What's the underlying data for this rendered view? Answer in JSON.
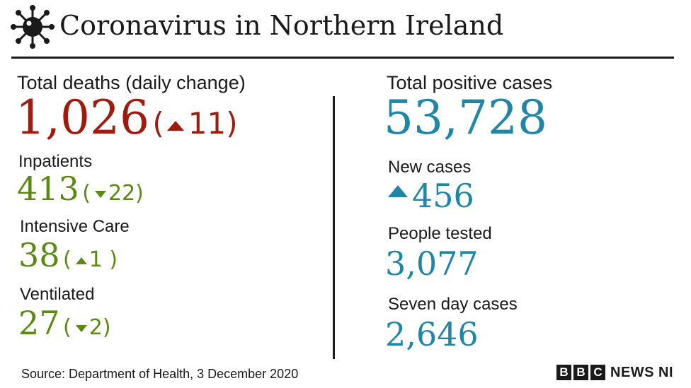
{
  "header": {
    "title": "Coronavirus in Northern Ireland",
    "icon": "virus-icon"
  },
  "left": {
    "deaths": {
      "label": "Total deaths (daily change)",
      "value": "1,026",
      "change": "11",
      "direction": "up"
    },
    "inpatients": {
      "label": "Inpatients",
      "value": "413",
      "change": "22",
      "direction": "down"
    },
    "intensive_care": {
      "label": "Intensive Care",
      "value": "38",
      "change": "1",
      "direction": "up"
    },
    "ventilated": {
      "label": "Ventilated",
      "value": "27",
      "change": "2",
      "direction": "down"
    }
  },
  "right": {
    "total_cases": {
      "label": "Total positive cases",
      "value": "53,728"
    },
    "new_cases": {
      "label": "New cases",
      "value": "456",
      "direction": "up"
    },
    "people_tested": {
      "label": "People tested",
      "value": "3,077"
    },
    "seven_day": {
      "label": "Seven day cases",
      "value": "2,646"
    }
  },
  "footer": {
    "source": "Source: Department of Health, 3 December 2020",
    "logo_letters": [
      "B",
      "B",
      "C"
    ],
    "logo_text": "NEWS NI"
  },
  "colors": {
    "deaths": "#9e1b0e",
    "healthcare": "#5b8a14",
    "cases": "#1f86a7",
    "text": "#1a1a1a"
  }
}
